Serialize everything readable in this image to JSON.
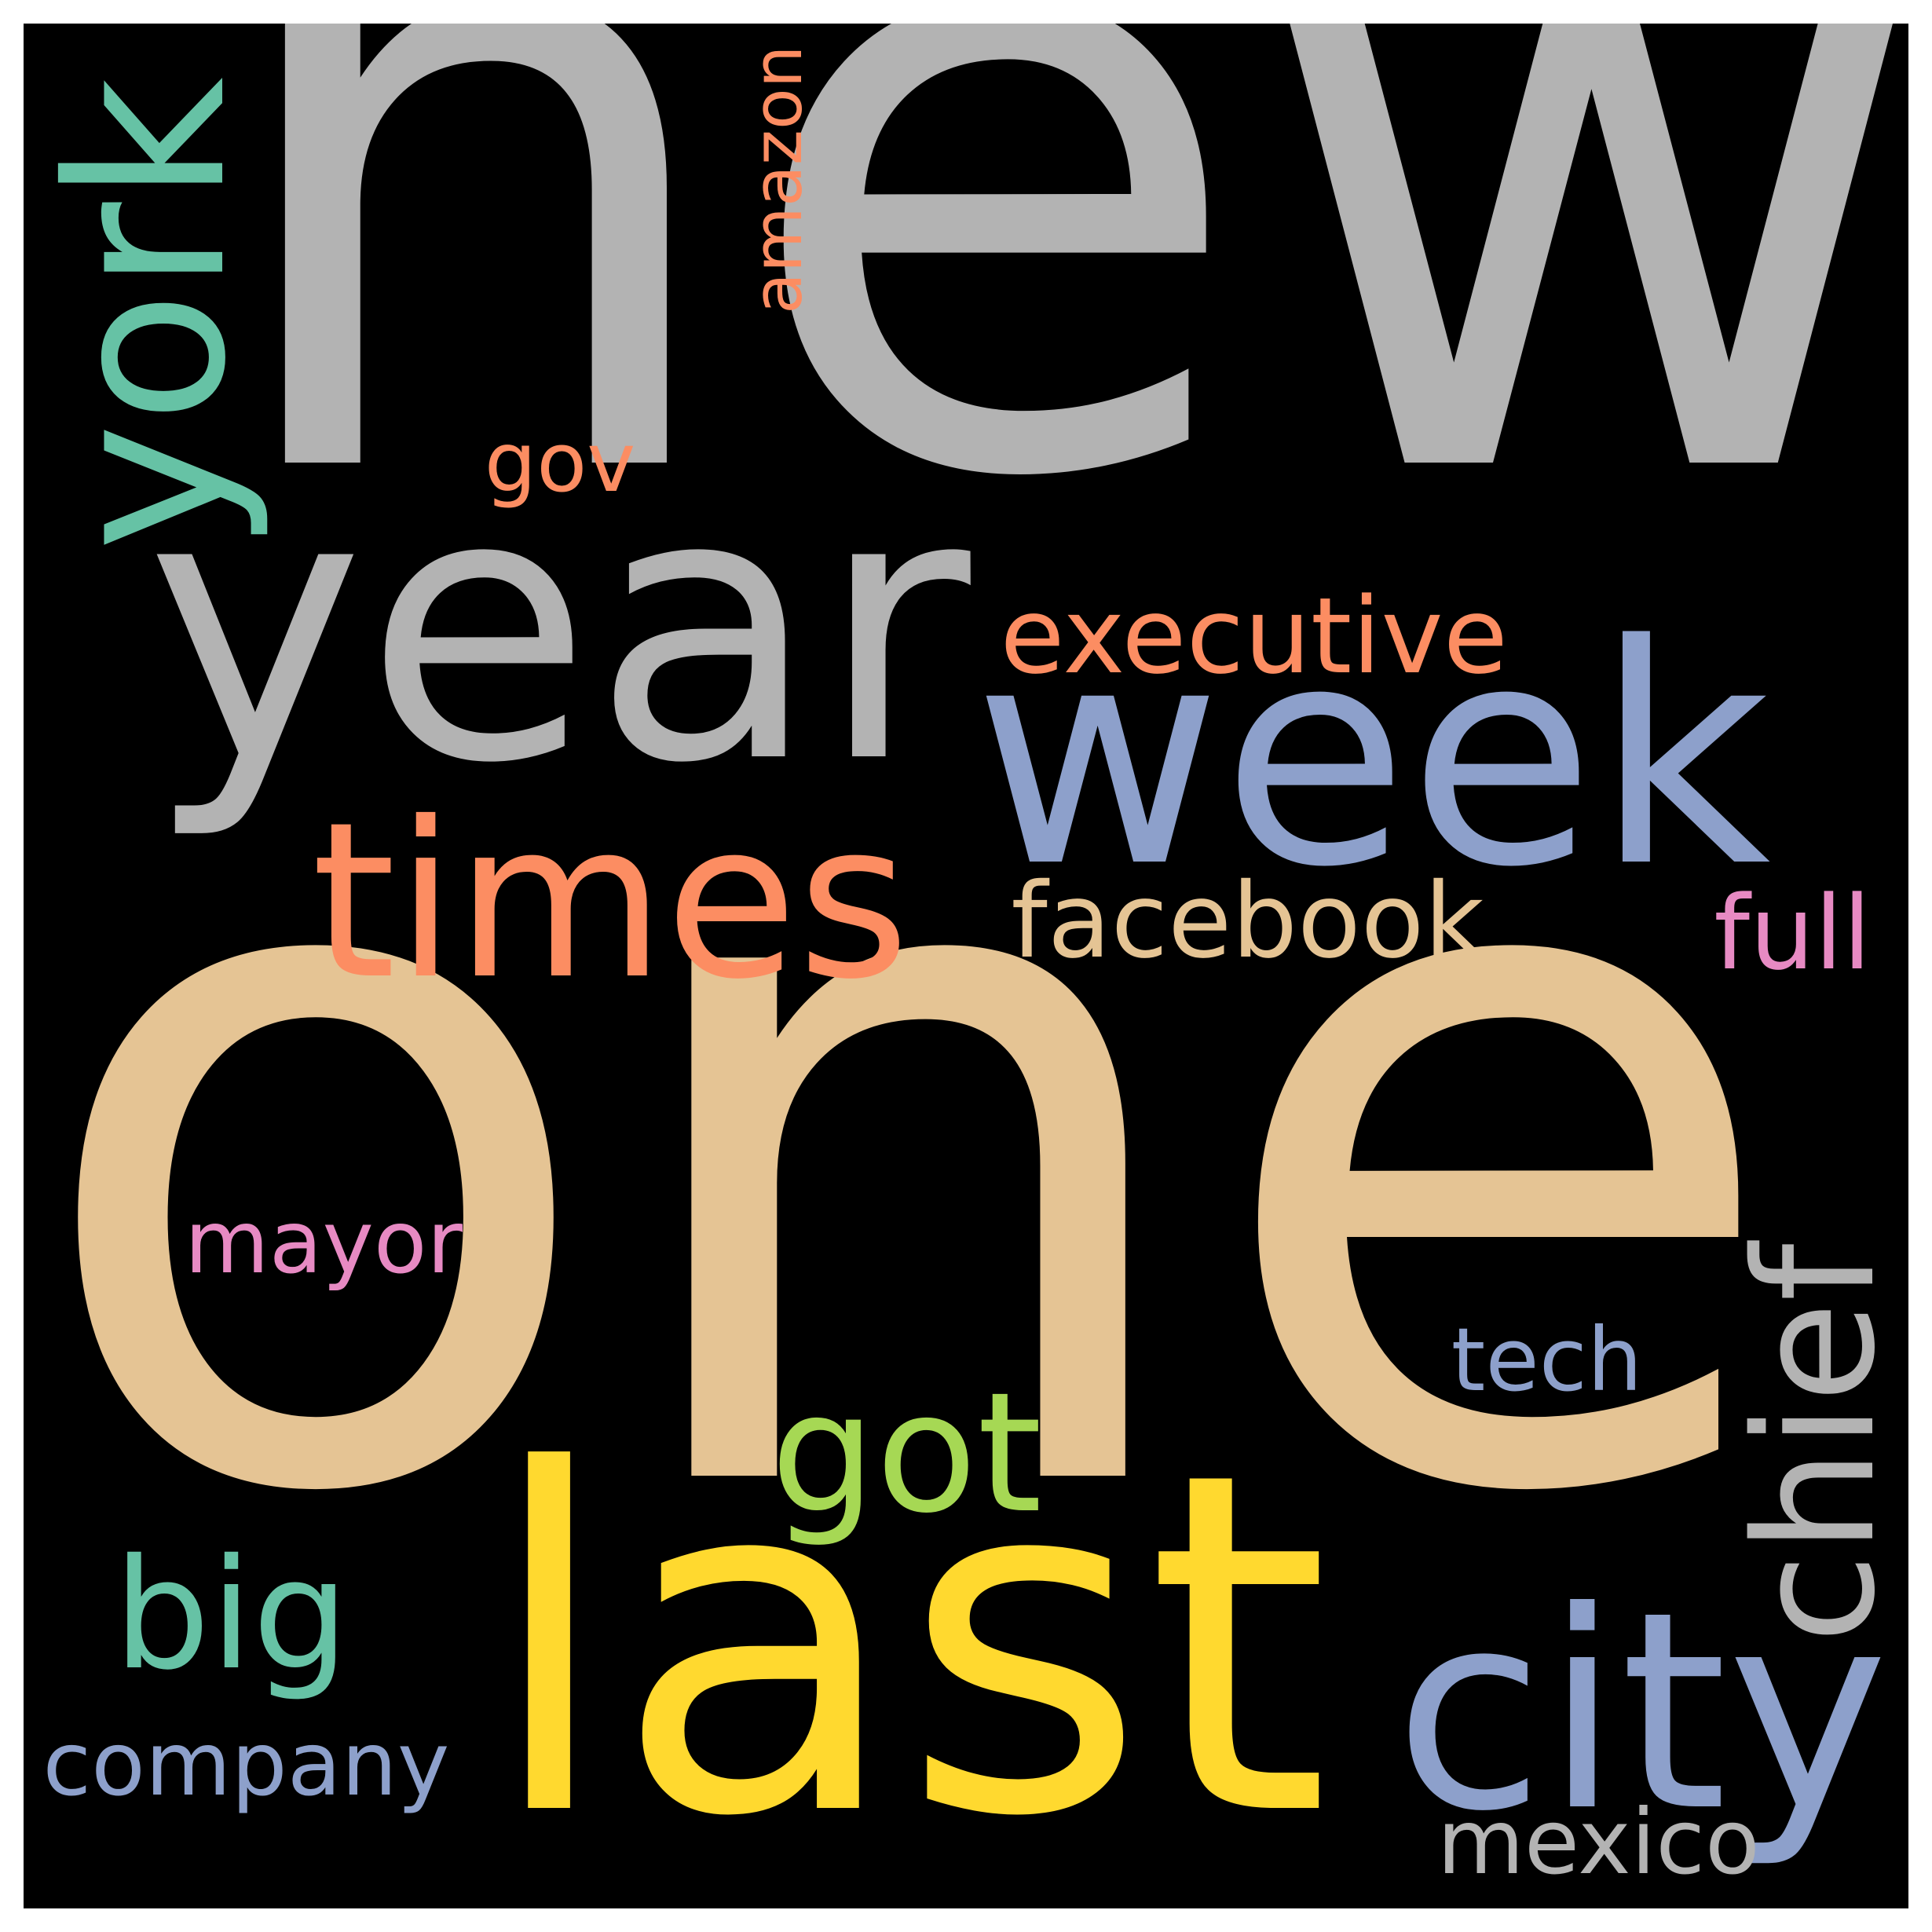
{
  "colors": {
    "background": "#000000",
    "frame": "#ffffff",
    "gray": "#b3b3b3",
    "tan": "#e5c494",
    "teal": "#66c2a5",
    "salmon": "#fc8d62",
    "blue": "#8da0cb",
    "yellow": "#ffd92f",
    "green": "#a6d854",
    "pink": "#e78ac3"
  },
  "words": [
    {
      "id": "new",
      "text": "new",
      "color": "#b3b3b3",
      "orientation": "horizontal"
    },
    {
      "id": "one",
      "text": "one",
      "color": "#e5c494",
      "orientation": "horizontal"
    },
    {
      "id": "york",
      "text": "york",
      "color": "#66c2a5",
      "orientation": "vertical"
    },
    {
      "id": "year",
      "text": "year",
      "color": "#b3b3b3",
      "orientation": "horizontal"
    },
    {
      "id": "week",
      "text": "week",
      "color": "#8da0cb",
      "orientation": "horizontal"
    },
    {
      "id": "times",
      "text": "times",
      "color": "#fc8d62",
      "orientation": "horizontal"
    },
    {
      "id": "last",
      "text": "last",
      "color": "#ffd92f",
      "orientation": "horizontal"
    },
    {
      "id": "city",
      "text": "city",
      "color": "#8da0cb",
      "orientation": "horizontal"
    },
    {
      "id": "big",
      "text": "big",
      "color": "#66c2a5",
      "orientation": "horizontal"
    },
    {
      "id": "got",
      "text": "got",
      "color": "#a6d854",
      "orientation": "horizontal"
    },
    {
      "id": "chief",
      "text": "chief",
      "color": "#b3b3b3",
      "orientation": "vertical"
    },
    {
      "id": "executive",
      "text": "executive",
      "color": "#fc8d62",
      "orientation": "horizontal"
    },
    {
      "id": "facebook",
      "text": "facebook",
      "color": "#e5c494",
      "orientation": "horizontal"
    },
    {
      "id": "full",
      "text": "full",
      "color": "#e78ac3",
      "orientation": "horizontal"
    },
    {
      "id": "company",
      "text": "company",
      "color": "#8da0cb",
      "orientation": "horizontal"
    },
    {
      "id": "mayor",
      "text": "mayor",
      "color": "#e78ac3",
      "orientation": "horizontal"
    },
    {
      "id": "mexico",
      "text": "mexico",
      "color": "#b3b3b3",
      "orientation": "horizontal"
    },
    {
      "id": "tech",
      "text": "tech",
      "color": "#8da0cb",
      "orientation": "horizontal"
    },
    {
      "id": "amazon",
      "text": "amazon",
      "color": "#fc8d62",
      "orientation": "vertical"
    },
    {
      "id": "gov",
      "text": "gov",
      "color": "#fc8d62",
      "orientation": "horizontal"
    }
  ]
}
